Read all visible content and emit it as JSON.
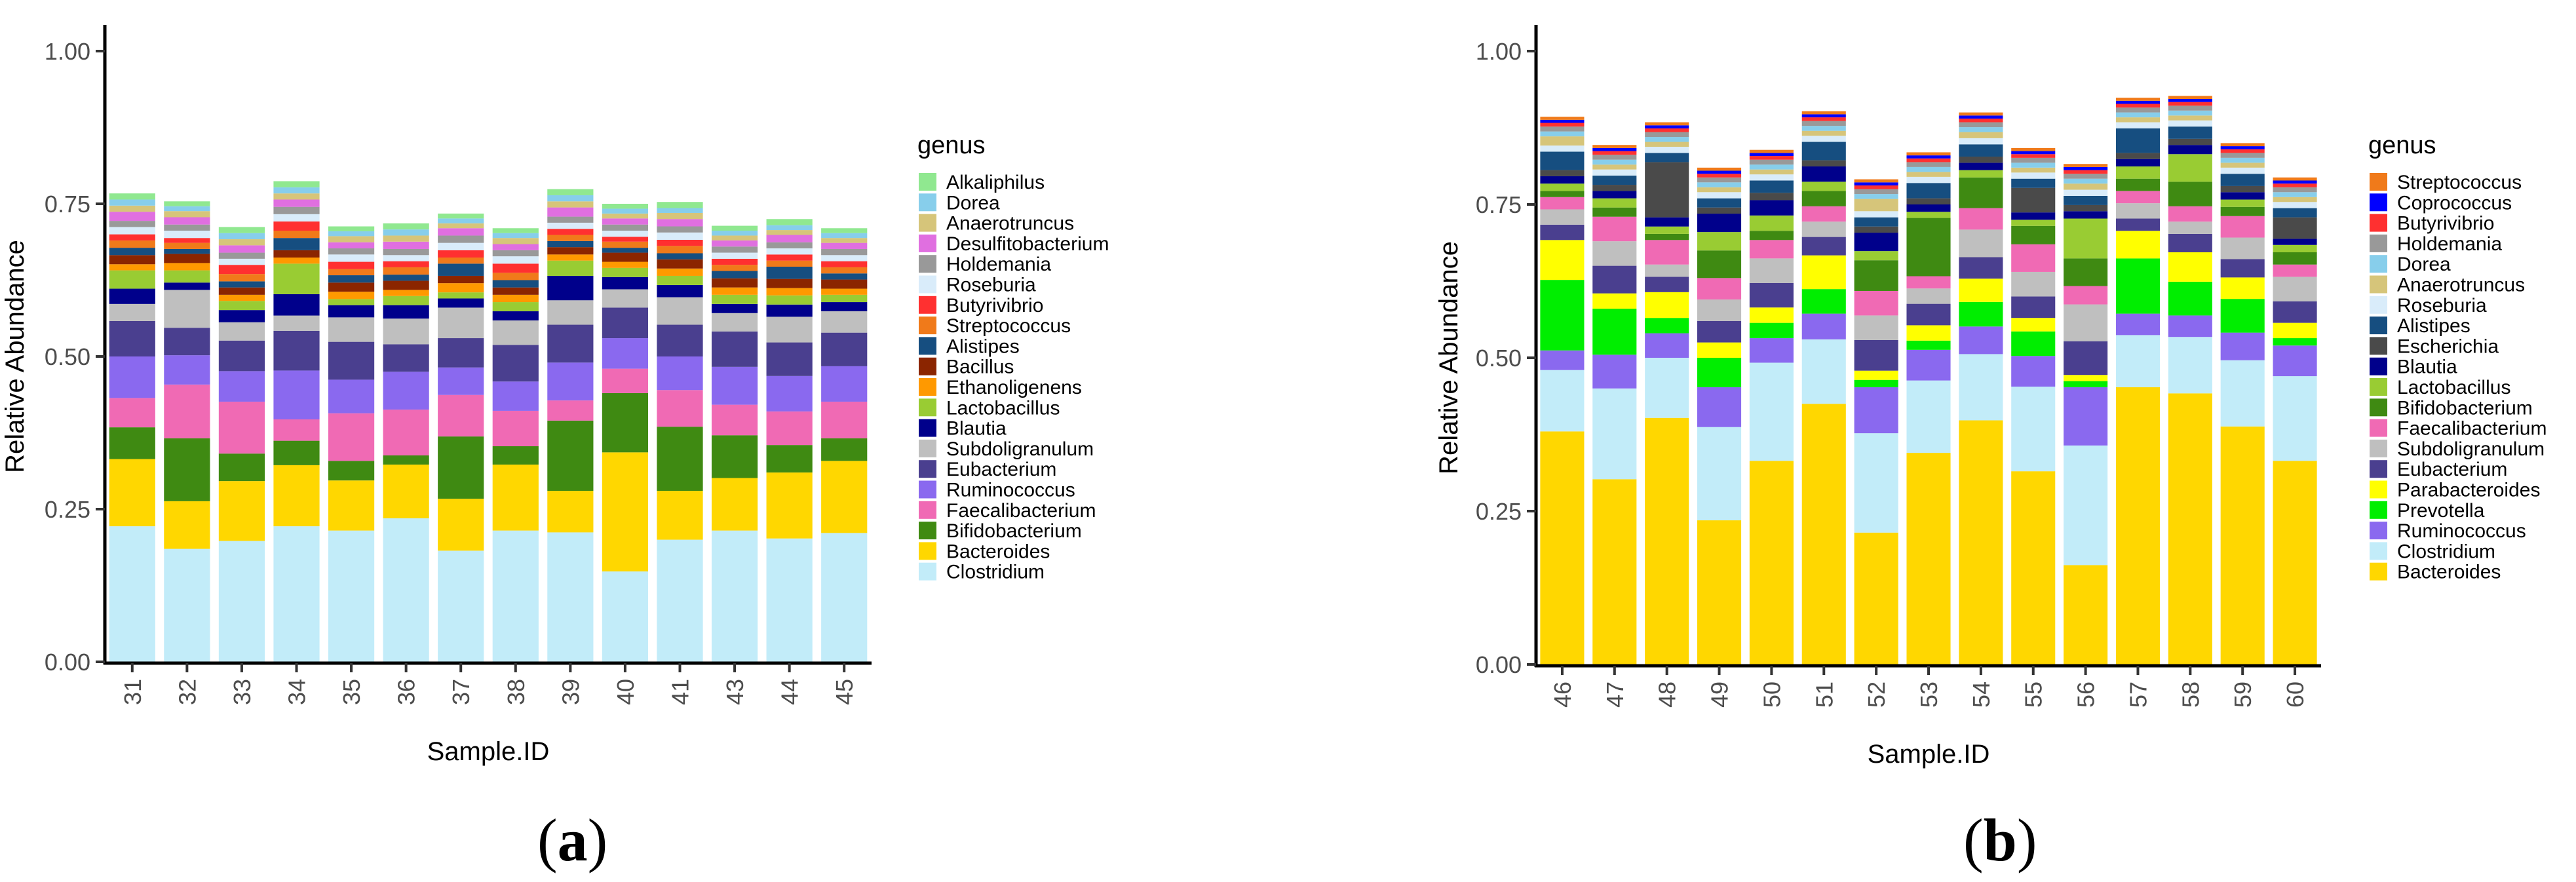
{
  "chart_data": [
    {
      "type": "bar",
      "stacked": true,
      "panel_label": "a",
      "xlabel": "Sample.ID",
      "ylabel": "Relative Abundance",
      "ylim": [
        0,
        1
      ],
      "yticks": [
        "0.00",
        "0.25",
        "0.50",
        "0.75",
        "1.00"
      ],
      "legend_title": "genus",
      "legend_position": "right",
      "categories": [
        "31",
        "32",
        "33",
        "34",
        "35",
        "36",
        "37",
        "38",
        "39",
        "40",
        "41",
        "43",
        "44",
        "45"
      ],
      "legend": [
        "Alkaliphilus",
        "Dorea",
        "Anaerotruncus",
        "Desulfitobacterium",
        "Holdemania",
        "Roseburia",
        "Butyrivibrio",
        "Streptococcus",
        "Alistipes",
        "Bacillus",
        "Ethanoligenens",
        "Lactobacillus",
        "Blautia",
        "Subdoligranulum",
        "Eubacterium",
        "Ruminococcus",
        "Faecalibacterium",
        "Bifidobacterium",
        "Bacteroides",
        "Clostridium"
      ],
      "series": [
        {
          "name": "Clostridium",
          "color": "#c2ecf9",
          "values": [
            0.222,
            0.185,
            0.198,
            0.222,
            0.215,
            0.235,
            0.182,
            0.215,
            0.212,
            0.148,
            0.2,
            0.215,
            0.202,
            0.211
          ]
        },
        {
          "name": "Bacteroides",
          "color": "#ffd700",
          "values": [
            0.11,
            0.078,
            0.098,
            0.1,
            0.082,
            0.088,
            0.085,
            0.108,
            0.068,
            0.195,
            0.08,
            0.086,
            0.108,
            0.118
          ]
        },
        {
          "name": "Bifidobacterium",
          "color": "#3f8a12",
          "values": [
            0.052,
            0.103,
            0.045,
            0.04,
            0.032,
            0.015,
            0.102,
            0.03,
            0.115,
            0.097,
            0.105,
            0.07,
            0.045,
            0.037
          ]
        },
        {
          "name": "Faecalibacterium",
          "color": "#f06ab4",
          "values": [
            0.048,
            0.088,
            0.085,
            0.035,
            0.078,
            0.075,
            0.068,
            0.058,
            0.033,
            0.04,
            0.06,
            0.05,
            0.055,
            0.06
          ]
        },
        {
          "name": "Ruminococcus",
          "color": "#8a69ef",
          "values": [
            0.068,
            0.048,
            0.05,
            0.08,
            0.055,
            0.062,
            0.045,
            0.048,
            0.062,
            0.05,
            0.055,
            0.062,
            0.058,
            0.058
          ]
        },
        {
          "name": "Eubacterium",
          "color": "#4a3f8f",
          "values": [
            0.058,
            0.045,
            0.05,
            0.065,
            0.062,
            0.045,
            0.048,
            0.06,
            0.062,
            0.05,
            0.052,
            0.058,
            0.055,
            0.055
          ]
        },
        {
          "name": "Subdoligranulum",
          "color": "#bfbfbf",
          "values": [
            0.028,
            0.062,
            0.03,
            0.025,
            0.04,
            0.042,
            0.05,
            0.04,
            0.04,
            0.03,
            0.045,
            0.03,
            0.042,
            0.035
          ]
        },
        {
          "name": "Blautia",
          "color": "#00008b",
          "values": [
            0.025,
            0.012,
            0.02,
            0.035,
            0.02,
            0.022,
            0.015,
            0.015,
            0.04,
            0.02,
            0.02,
            0.015,
            0.02,
            0.015
          ]
        },
        {
          "name": "Lactobacillus",
          "color": "#99cc33",
          "values": [
            0.03,
            0.02,
            0.015,
            0.05,
            0.01,
            0.015,
            0.01,
            0.015,
            0.025,
            0.015,
            0.015,
            0.015,
            0.015,
            0.012
          ]
        },
        {
          "name": "Ethanoligenens",
          "color": "#ff9900",
          "values": [
            0.01,
            0.012,
            0.01,
            0.01,
            0.012,
            0.01,
            0.015,
            0.012,
            0.01,
            0.01,
            0.012,
            0.012,
            0.012,
            0.01
          ]
        },
        {
          "name": "Bacillus",
          "color": "#8b2500",
          "values": [
            0.015,
            0.015,
            0.012,
            0.012,
            0.015,
            0.015,
            0.012,
            0.012,
            0.012,
            0.015,
            0.015,
            0.015,
            0.015,
            0.015
          ]
        },
        {
          "name": "Alistipes",
          "color": "#164e80",
          "values": [
            0.012,
            0.008,
            0.01,
            0.02,
            0.012,
            0.01,
            0.02,
            0.012,
            0.01,
            0.008,
            0.01,
            0.012,
            0.02,
            0.01
          ]
        },
        {
          "name": "Streptococcus",
          "color": "#f07a1a",
          "values": [
            0.012,
            0.01,
            0.012,
            0.012,
            0.01,
            0.012,
            0.01,
            0.012,
            0.01,
            0.01,
            0.012,
            0.01,
            0.01,
            0.01
          ]
        },
        {
          "name": "Butyrivibrio",
          "color": "#ff3030",
          "values": [
            0.01,
            0.008,
            0.015,
            0.015,
            0.012,
            0.01,
            0.012,
            0.015,
            0.01,
            0.008,
            0.01,
            0.01,
            0.01,
            0.01
          ]
        },
        {
          "name": "Roseburia",
          "color": "#d9ecfa",
          "values": [
            0.012,
            0.012,
            0.01,
            0.012,
            0.012,
            0.01,
            0.012,
            0.012,
            0.01,
            0.01,
            0.012,
            0.01,
            0.01,
            0.01
          ]
        },
        {
          "name": "Holdemania",
          "color": "#999999",
          "values": [
            0.01,
            0.01,
            0.01,
            0.012,
            0.01,
            0.01,
            0.012,
            0.01,
            0.01,
            0.01,
            0.01,
            0.01,
            0.01,
            0.01
          ]
        },
        {
          "name": "Desulfitobacterium",
          "color": "#e06fe0",
          "values": [
            0.015,
            0.012,
            0.012,
            0.012,
            0.01,
            0.012,
            0.012,
            0.01,
            0.015,
            0.01,
            0.012,
            0.01,
            0.012,
            0.01
          ]
        },
        {
          "name": "Anaerotruncus",
          "color": "#d6c57a",
          "values": [
            0.01,
            0.01,
            0.01,
            0.01,
            0.01,
            0.01,
            0.008,
            0.01,
            0.01,
            0.008,
            0.01,
            0.008,
            0.008,
            0.008
          ]
        },
        {
          "name": "Dorea",
          "color": "#87ceeb",
          "values": [
            0.01,
            0.008,
            0.01,
            0.01,
            0.008,
            0.01,
            0.008,
            0.008,
            0.01,
            0.008,
            0.008,
            0.008,
            0.008,
            0.008
          ]
        },
        {
          "name": "Alkaliphilus",
          "color": "#90e890",
          "values": [
            0.01,
            0.008,
            0.01,
            0.01,
            0.008,
            0.01,
            0.008,
            0.008,
            0.01,
            0.008,
            0.01,
            0.008,
            0.01,
            0.008
          ]
        }
      ]
    },
    {
      "type": "bar",
      "stacked": true,
      "panel_label": "b",
      "xlabel": "Sample.ID",
      "ylabel": "Relative Abundance",
      "ylim": [
        0,
        1
      ],
      "yticks": [
        "0.00",
        "0.25",
        "0.50",
        "0.75",
        "1.00"
      ],
      "legend_title": "genus",
      "legend_position": "right",
      "categories": [
        "46",
        "47",
        "48",
        "49",
        "50",
        "51",
        "52",
        "53",
        "54",
        "55",
        "56",
        "57",
        "58",
        "59",
        "60"
      ],
      "legend": [
        "Streptococcus",
        "Coprococcus",
        "Butyrivibrio",
        "Holdemania",
        "Dorea",
        "Anaerotruncus",
        "Roseburia",
        "Alistipes",
        "Escherichia",
        "Blautia",
        "Lactobacillus",
        "Bifidobacterium",
        "Faecalibacterium",
        "Subdoligranulum",
        "Eubacterium",
        "Parabacteroides",
        "Prevotella",
        "Ruminococcus",
        "Clostridium",
        "Bacteroides"
      ],
      "series": [
        {
          "name": "Bacteroides",
          "color": "#ffd700",
          "values": [
            0.38,
            0.302,
            0.402,
            0.235,
            0.332,
            0.425,
            0.215,
            0.345,
            0.398,
            0.315,
            0.162,
            0.452,
            0.442,
            0.388,
            0.332
          ]
        },
        {
          "name": "Clostridium",
          "color": "#c2ecf9",
          "values": [
            0.1,
            0.148,
            0.098,
            0.152,
            0.16,
            0.105,
            0.162,
            0.118,
            0.108,
            0.138,
            0.195,
            0.085,
            0.092,
            0.108,
            0.138
          ]
        },
        {
          "name": "Ruminococcus",
          "color": "#8a69ef",
          "values": [
            0.032,
            0.055,
            0.04,
            0.065,
            0.04,
            0.042,
            0.075,
            0.05,
            0.045,
            0.05,
            0.095,
            0.035,
            0.035,
            0.045,
            0.05
          ]
        },
        {
          "name": "Prevotella",
          "color": "#00ee00",
          "values": [
            0.115,
            0.075,
            0.025,
            0.048,
            0.025,
            0.04,
            0.012,
            0.015,
            0.04,
            0.04,
            0.01,
            0.09,
            0.055,
            0.055,
            0.012
          ]
        },
        {
          "name": "Parabacteroides",
          "color": "#ffff00",
          "values": [
            0.065,
            0.025,
            0.042,
            0.025,
            0.025,
            0.055,
            0.015,
            0.025,
            0.038,
            0.022,
            0.01,
            0.045,
            0.048,
            0.035,
            0.025
          ]
        },
        {
          "name": "Eubacterium",
          "color": "#4a3f8f",
          "values": [
            0.025,
            0.045,
            0.025,
            0.035,
            0.04,
            0.03,
            0.05,
            0.035,
            0.035,
            0.035,
            0.055,
            0.02,
            0.03,
            0.03,
            0.035
          ]
        },
        {
          "name": "Subdoligranulum",
          "color": "#bfbfbf",
          "values": [
            0.025,
            0.04,
            0.02,
            0.035,
            0.04,
            0.025,
            0.04,
            0.025,
            0.045,
            0.04,
            0.06,
            0.025,
            0.02,
            0.035,
            0.04
          ]
        },
        {
          "name": "Faecalibacterium",
          "color": "#f06ab4",
          "values": [
            0.02,
            0.04,
            0.04,
            0.035,
            0.03,
            0.025,
            0.04,
            0.02,
            0.035,
            0.045,
            0.03,
            0.02,
            0.025,
            0.035,
            0.02
          ]
        },
        {
          "name": "Bifidobacterium",
          "color": "#3f8a12",
          "values": [
            0.01,
            0.015,
            0.01,
            0.045,
            0.015,
            0.025,
            0.05,
            0.095,
            0.05,
            0.03,
            0.045,
            0.02,
            0.04,
            0.015,
            0.02
          ]
        },
        {
          "name": "Lactobacillus",
          "color": "#99cc33",
          "values": [
            0.012,
            0.015,
            0.012,
            0.03,
            0.025,
            0.015,
            0.015,
            0.01,
            0.012,
            0.01,
            0.065,
            0.02,
            0.045,
            0.012,
            0.012
          ]
        },
        {
          "name": "Blautia",
          "color": "#00008b",
          "values": [
            0.012,
            0.012,
            0.015,
            0.03,
            0.025,
            0.025,
            0.03,
            0.012,
            0.012,
            0.012,
            0.012,
            0.012,
            0.015,
            0.012,
            0.01
          ]
        },
        {
          "name": "Escherichia",
          "color": "#4a4a4a",
          "values": [
            0.01,
            0.01,
            0.09,
            0.01,
            0.012,
            0.01,
            0.01,
            0.01,
            0.01,
            0.04,
            0.01,
            0.01,
            0.01,
            0.01,
            0.035
          ]
        },
        {
          "name": "Alistipes",
          "color": "#164e80",
          "values": [
            0.03,
            0.015,
            0.015,
            0.015,
            0.02,
            0.03,
            0.015,
            0.025,
            0.02,
            0.015,
            0.015,
            0.04,
            0.02,
            0.02,
            0.015
          ]
        },
        {
          "name": "Roseburia",
          "color": "#d9ecfa",
          "values": [
            0.01,
            0.01,
            0.01,
            0.01,
            0.01,
            0.01,
            0.01,
            0.01,
            0.01,
            0.01,
            0.01,
            0.01,
            0.01,
            0.01,
            0.01
          ]
        },
        {
          "name": "Anaerotruncus",
          "color": "#d6c57a",
          "values": [
            0.015,
            0.008,
            0.008,
            0.008,
            0.008,
            0.008,
            0.02,
            0.008,
            0.01,
            0.008,
            0.01,
            0.008,
            0.008,
            0.008,
            0.008
          ]
        },
        {
          "name": "Dorea",
          "color": "#87ceeb",
          "values": [
            0.008,
            0.008,
            0.008,
            0.008,
            0.008,
            0.008,
            0.008,
            0.008,
            0.008,
            0.008,
            0.008,
            0.008,
            0.008,
            0.008,
            0.008
          ]
        },
        {
          "name": "Holdemania",
          "color": "#999999",
          "values": [
            0.008,
            0.008,
            0.008,
            0.008,
            0.008,
            0.008,
            0.008,
            0.008,
            0.008,
            0.008,
            0.008,
            0.008,
            0.008,
            0.008,
            0.008
          ]
        },
        {
          "name": "Butyrivibrio",
          "color": "#ff3030",
          "values": [
            0.006,
            0.006,
            0.006,
            0.006,
            0.006,
            0.006,
            0.006,
            0.006,
            0.006,
            0.006,
            0.006,
            0.006,
            0.006,
            0.006,
            0.006
          ]
        },
        {
          "name": "Coprococcus",
          "color": "#0000ff",
          "values": [
            0.005,
            0.005,
            0.005,
            0.005,
            0.005,
            0.005,
            0.005,
            0.005,
            0.005,
            0.005,
            0.005,
            0.005,
            0.005,
            0.005,
            0.005
          ]
        },
        {
          "name": "Streptococcus",
          "color": "#f07a1a",
          "values": [
            0.005,
            0.005,
            0.005,
            0.005,
            0.005,
            0.005,
            0.005,
            0.005,
            0.005,
            0.005,
            0.005,
            0.005,
            0.005,
            0.005,
            0.005
          ]
        }
      ]
    }
  ]
}
